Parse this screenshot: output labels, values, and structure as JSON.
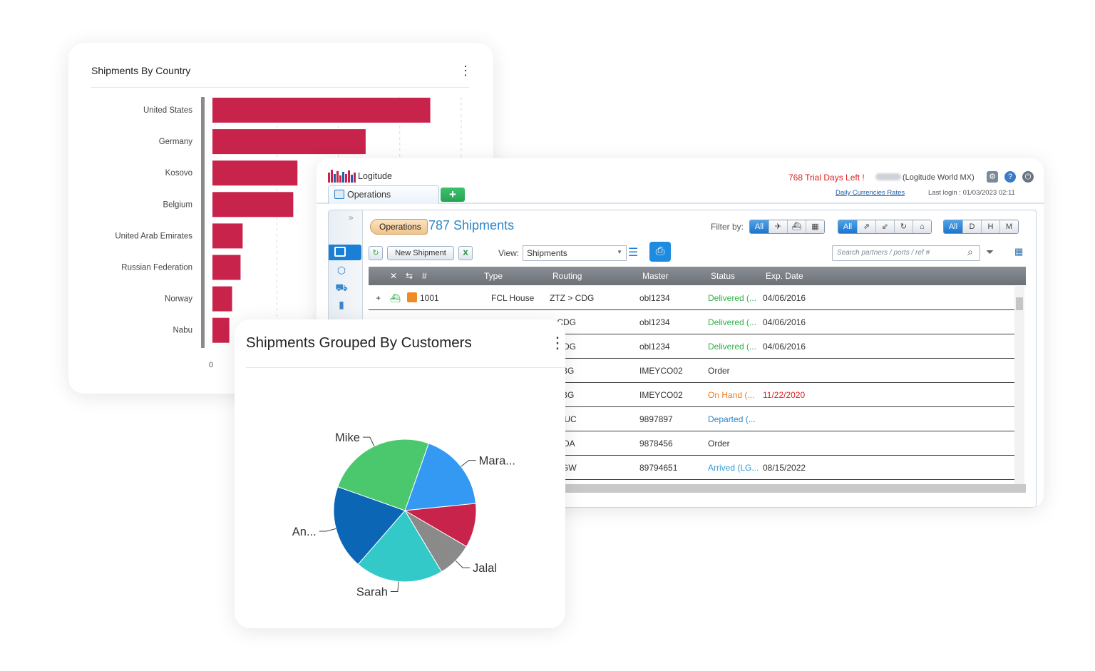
{
  "bar_card": {
    "title": "Shipments By Country",
    "menu_icon": "kebab-icon"
  },
  "pie_card": {
    "title": "Shipments Grouped By Customers",
    "menu_icon": "kebab-icon"
  },
  "chart_data": [
    {
      "type": "bar",
      "orientation": "horizontal",
      "title": "Shipments By Country",
      "categories": [
        "United States",
        "Germany",
        "Kosovo",
        "Belgium",
        "United Arab Emirates",
        "Russian Federation",
        "Norway",
        "Nabu"
      ],
      "values": [
        31,
        21.8,
        12.1,
        11.5,
        4.3,
        4.0,
        2.8,
        2.4
      ],
      "xlim": [
        0,
        35
      ],
      "x_tick_labels": [
        "0"
      ],
      "color": "#c8234a",
      "grid": "vertical dashed"
    },
    {
      "type": "pie",
      "title": "Shipments Grouped By Customers",
      "labels": [
        "Mara...",
        "Customer (red, unlabeled)",
        "Jalal",
        "Sarah",
        "An...",
        "Mike"
      ],
      "display_labels": [
        "Mara...",
        "",
        "Jalal",
        "Sarah",
        "An...",
        "Mike"
      ],
      "values": [
        18,
        10,
        8,
        20,
        19,
        25
      ],
      "colors": [
        "#3399f3",
        "#c8234a",
        "#8a8a8a",
        "#33c9c9",
        "#0b66b6",
        "#4bc86e"
      ]
    }
  ],
  "app": {
    "name": "Logitude",
    "trial_text": "768 Trial Days Left !",
    "company": "(Logitude World MX)",
    "currency_link": "Daily Currencies Rates",
    "last_login": "Last login : 01/03/2023 02:11",
    "tab_label": "Operations",
    "add_tab": "+",
    "breadcrumb": "Operations",
    "shipments_title": "787 Shipments",
    "filter_label": "Filter by:",
    "filter_mode": [
      "All",
      "✈",
      "⛴",
      "▦"
    ],
    "filter_direction": [
      "All",
      "⇗",
      "⇙",
      "↻",
      "⌂"
    ],
    "filter_time": [
      "All",
      "D",
      "H",
      "M"
    ],
    "new_shipment": "New Shipment",
    "view_label": "View:",
    "view_value": "Shipments",
    "search_placeholder": "Search partners / ports / ref #",
    "columns": [
      "#",
      "Type",
      "Routing",
      "Master",
      "Status",
      "Exp. Date"
    ],
    "rows": [
      {
        "expand": "+",
        "num": "1001",
        "type": "FCL House",
        "routing": "ZTZ > CDG",
        "master": "obl1234",
        "status": "Delivered (...",
        "status_color": "#2fae49",
        "date": "04/06/2016",
        "date_color": "#333"
      },
      {
        "expand": "",
        "num": "",
        "type": "",
        "routing": "> CDG",
        "master": "obl1234",
        "status": "Delivered (...",
        "status_color": "#2fae49",
        "date": "04/06/2016",
        "date_color": "#333"
      },
      {
        "expand": "",
        "num": "",
        "type": "",
        "routing": "> CDG",
        "master": "obl1234",
        "status": "Delivered (...",
        "status_color": "#2fae49",
        "date": "04/06/2016",
        "date_color": "#333"
      },
      {
        "expand": "",
        "num": "",
        "type": "",
        "routing": "> LBG",
        "master": "IMEYCO02",
        "status": "Order",
        "status_color": "#333",
        "date": "",
        "date_color": "#333"
      },
      {
        "expand": "",
        "num": "",
        "type": "",
        "routing": "> LBG",
        "master": "IMEYCO02",
        "status": "On Hand (...",
        "status_color": "#f07a1a",
        "date": "11/22/2020",
        "date_color": "#e02020"
      },
      {
        "expand": "",
        "num": "",
        "type": "",
        "routing": "> MUC",
        "master": "9897897",
        "status": "Departed (...",
        "status_color": "#2e86c9",
        "date": "",
        "date_color": "#333"
      },
      {
        "expand": "",
        "num": "",
        "type": "",
        "routing": "> NDA",
        "master": "9878456",
        "status": "Order",
        "status_color": "#333",
        "date": "",
        "date_color": "#333"
      },
      {
        "expand": "",
        "num": "",
        "type": "",
        "routing": "> LGW",
        "master": "89794651",
        "status": "Arrived (LG...",
        "status_color": "#2e9bd6",
        "date": "08/15/2022",
        "date_color": "#333"
      }
    ]
  }
}
